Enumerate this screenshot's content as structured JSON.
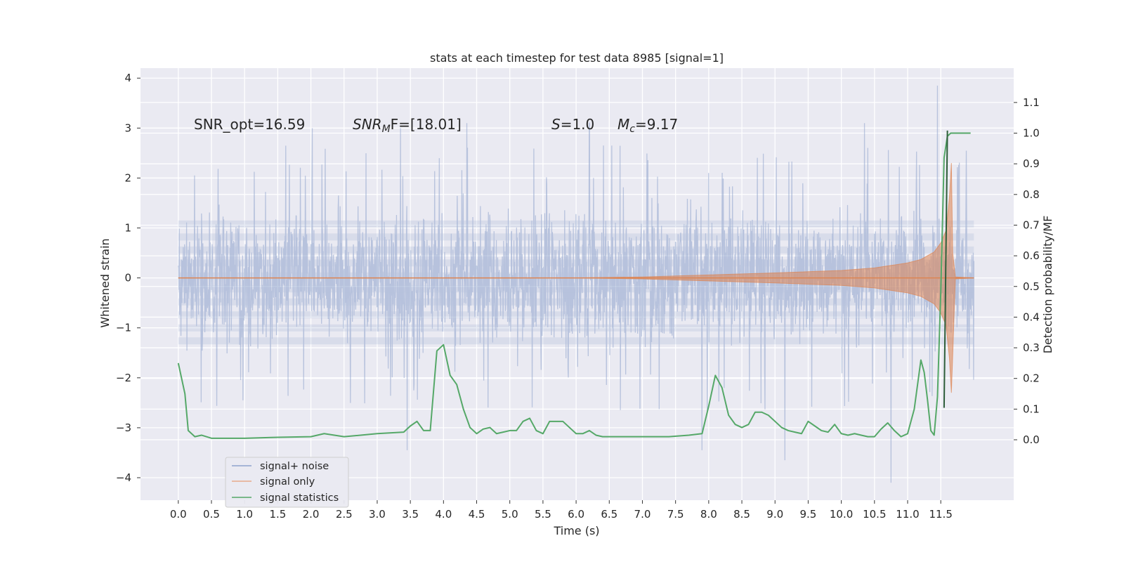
{
  "chart_data": {
    "type": "line",
    "title": "stats at each timestep for test data 8985 [signal=1]",
    "xlabel": "Time (s)",
    "ylabel_left": "Whitened strain",
    "ylabel_right": "Detection probability/MF",
    "xlim": [
      -0.57,
      12.6
    ],
    "ylim_left": [
      -4.45,
      4.2
    ],
    "ylim_right": [
      -0.197,
      1.212
    ],
    "x_ticks": [
      "0.0",
      "0.5",
      "1.0",
      "1.5",
      "2.0",
      "2.5",
      "3.0",
      "3.5",
      "4.0",
      "4.5",
      "5.0",
      "5.5",
      "6.0",
      "6.5",
      "7.0",
      "7.5",
      "8.0",
      "8.5",
      "9.0",
      "9.5",
      "10.0",
      "10.5",
      "11.0",
      "11.5"
    ],
    "y_ticks_left": [
      "4",
      "3",
      "2",
      "1",
      "0",
      "−1",
      "−2",
      "−3",
      "−4"
    ],
    "y_tick_values_left": [
      4,
      3,
      2,
      1,
      0,
      -1,
      -2,
      -3,
      -4
    ],
    "y_ticks_right": [
      "1.1",
      "1.0",
      "0.9",
      "0.8",
      "0.7",
      "0.6",
      "0.5",
      "0.4",
      "0.3",
      "0.2",
      "0.1",
      "0.0"
    ],
    "y_tick_values_right": [
      1.1,
      1.0,
      0.9,
      0.8,
      0.7,
      0.6,
      0.5,
      0.4,
      0.3,
      0.2,
      0.1,
      0.0
    ],
    "annotations": {
      "snr_opt": "SNR_opt=16.59",
      "snr_mf_base": "SNR",
      "snr_mf_sub": "M",
      "snr_mf_rest": "F=[18.01]",
      "s_var": "S",
      "s_value": "=1.0",
      "mc_var": "M",
      "mc_sub": "c",
      "mc_value": "=9.17"
    },
    "series": [
      {
        "name": "signal+ noise",
        "color": "#8ea3cc",
        "x_range": [
          0.0,
          12.0
        ],
        "typical_envelope": [
          -1.35,
          1.35
        ],
        "peak_spikes": [
          {
            "x": 2.02,
            "y": 3.0
          },
          {
            "x": 3.35,
            "y": 3.0
          },
          {
            "x": 4.35,
            "y": 3.1
          },
          {
            "x": 6.2,
            "y": 3.1
          },
          {
            "x": 10.35,
            "y": 3.1
          },
          {
            "x": 11.45,
            "y": 3.85
          },
          {
            "x": 3.45,
            "y": -3.45
          },
          {
            "x": 7.9,
            "y": -3.45
          },
          {
            "x": 9.15,
            "y": -3.65
          },
          {
            "x": 10.75,
            "y": -4.1
          }
        ]
      },
      {
        "name": "signal only",
        "color": "#dd8452",
        "x": [
          0.0,
          6.0,
          7.0,
          8.0,
          9.0,
          10.0,
          10.5,
          11.0,
          11.2,
          11.4,
          11.5,
          11.58,
          11.63,
          11.66,
          11.68,
          11.72,
          12.0
        ],
        "envelope": [
          0.0,
          0.0,
          0.02,
          0.06,
          0.1,
          0.15,
          0.2,
          0.3,
          0.37,
          0.52,
          0.7,
          0.95,
          1.6,
          2.3,
          0.5,
          0.02,
          0.0
        ]
      },
      {
        "name": "signal statistics",
        "color": "#55a868",
        "x": [
          0.0,
          0.1,
          0.15,
          0.25,
          0.35,
          0.5,
          1.0,
          1.5,
          2.0,
          2.2,
          2.5,
          3.0,
          3.4,
          3.5,
          3.6,
          3.7,
          3.8,
          3.9,
          4.0,
          4.1,
          4.2,
          4.3,
          4.4,
          4.5,
          4.6,
          4.7,
          4.8,
          4.9,
          5.0,
          5.1,
          5.2,
          5.3,
          5.4,
          5.5,
          5.6,
          5.7,
          5.8,
          5.9,
          6.0,
          6.1,
          6.2,
          6.3,
          6.4,
          6.5,
          7.0,
          7.2,
          7.4,
          7.7,
          7.9,
          8.0,
          8.1,
          8.2,
          8.3,
          8.4,
          8.5,
          8.6,
          8.7,
          8.8,
          8.9,
          9.0,
          9.1,
          9.2,
          9.3,
          9.4,
          9.5,
          9.6,
          9.7,
          9.8,
          9.9,
          10.0,
          10.1,
          10.2,
          10.3,
          10.4,
          10.5,
          10.6,
          10.7,
          10.8,
          10.9,
          11.0,
          11.1,
          11.2,
          11.25,
          11.3,
          11.35,
          11.4,
          11.45,
          11.5,
          11.55,
          11.6,
          11.65,
          11.7,
          11.8,
          11.9,
          11.95
        ],
        "y": [
          0.25,
          0.15,
          0.03,
          0.01,
          0.015,
          0.005,
          0.005,
          0.008,
          0.01,
          0.02,
          0.01,
          0.02,
          0.025,
          0.045,
          0.06,
          0.03,
          0.03,
          0.29,
          0.31,
          0.21,
          0.18,
          0.1,
          0.04,
          0.02,
          0.035,
          0.04,
          0.02,
          0.025,
          0.03,
          0.03,
          0.06,
          0.07,
          0.03,
          0.02,
          0.06,
          0.06,
          0.06,
          0.04,
          0.02,
          0.02,
          0.03,
          0.015,
          0.01,
          0.01,
          0.01,
          0.01,
          0.01,
          0.015,
          0.02,
          0.11,
          0.21,
          0.17,
          0.08,
          0.05,
          0.04,
          0.05,
          0.09,
          0.09,
          0.08,
          0.06,
          0.04,
          0.03,
          0.025,
          0.02,
          0.06,
          0.045,
          0.03,
          0.025,
          0.05,
          0.02,
          0.015,
          0.02,
          0.015,
          0.01,
          0.01,
          0.035,
          0.055,
          0.03,
          0.01,
          0.02,
          0.1,
          0.26,
          0.22,
          0.13,
          0.03,
          0.015,
          0.14,
          0.48,
          0.92,
          0.99,
          1.0,
          1.0,
          1.0,
          1.0,
          1.0
        ]
      }
    ],
    "legend_position": "lower-left"
  }
}
